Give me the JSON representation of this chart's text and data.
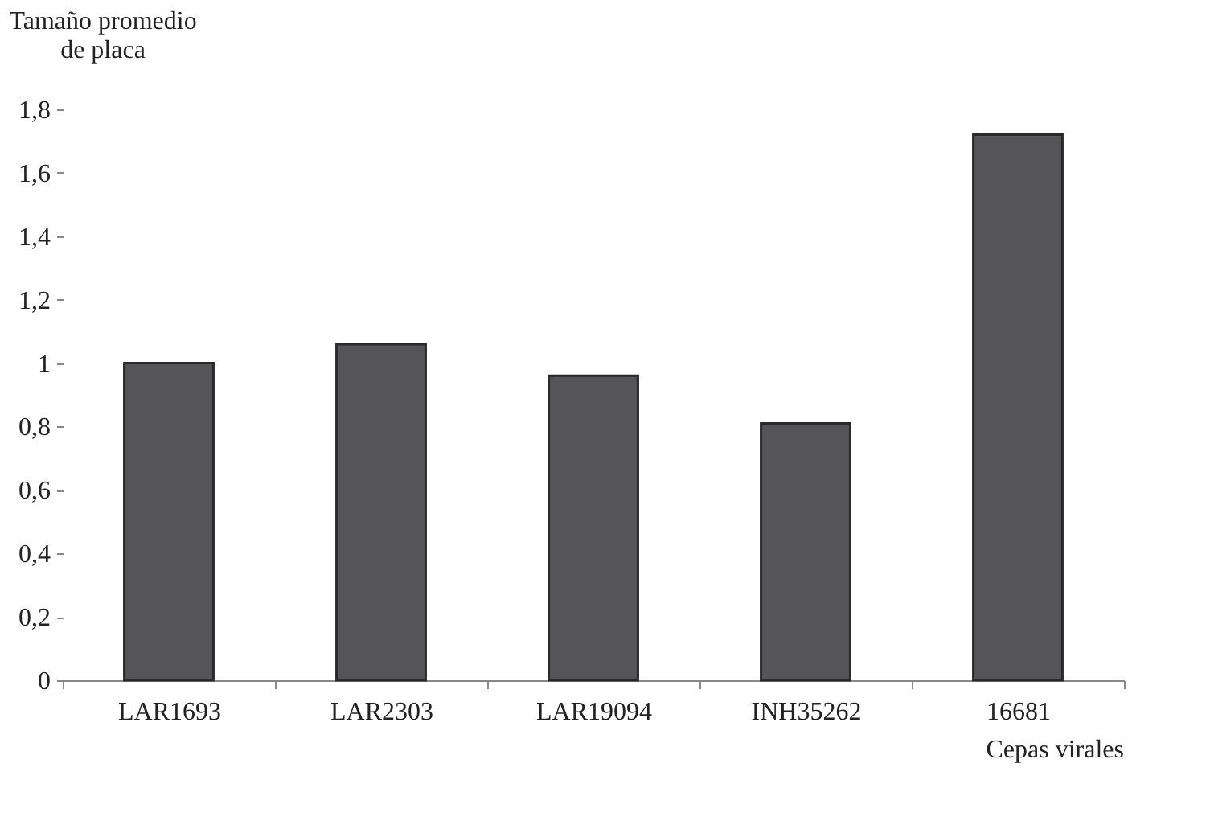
{
  "chart_data": {
    "type": "bar",
    "ylabel": "Tamaño promedio de placa",
    "xlabel": "Cepas virales",
    "categories": [
      "LAR1693",
      "LAR2303",
      "LAR19094",
      "INH35262",
      "16681"
    ],
    "values": [
      1.0,
      1.06,
      0.96,
      0.81,
      1.72
    ],
    "color": "#555558",
    "ylim": [
      0,
      1.8
    ],
    "yticks": [
      {
        "value": 0,
        "label": "0"
      },
      {
        "value": 0.2,
        "label": "0,2"
      },
      {
        "value": 0.4,
        "label": "0,4"
      },
      {
        "value": 0.6,
        "label": "0,6"
      },
      {
        "value": 0.8,
        "label": "0,8"
      },
      {
        "value": 1,
        "label": "1"
      },
      {
        "value": 1.2,
        "label": "1,2"
      },
      {
        "value": 1.4,
        "label": "1,4"
      },
      {
        "value": 1.6,
        "label": "1,6"
      },
      {
        "value": 1.8,
        "label": "1,8"
      }
    ],
    "grid": false
  }
}
